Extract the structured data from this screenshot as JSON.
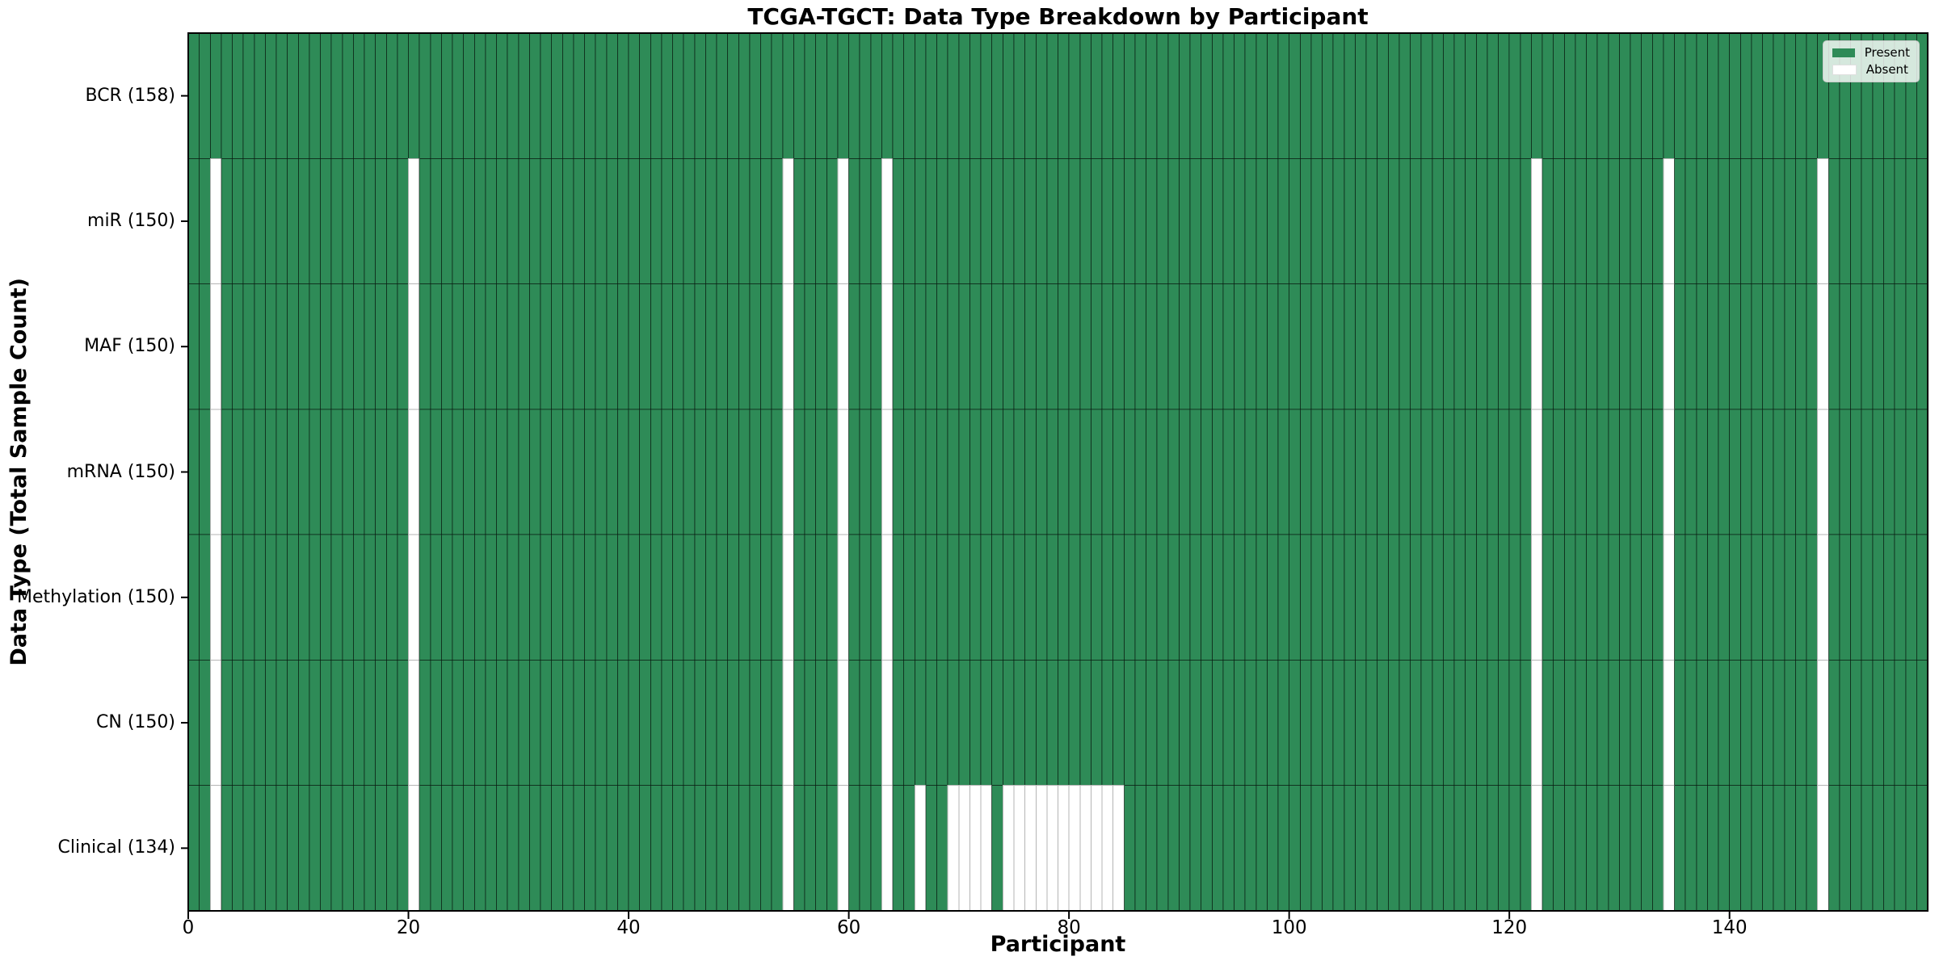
{
  "figure": {
    "title": "TCGA-TGCT: Data Type Breakdown by Participant",
    "xlabel": "Participant",
    "ylabel": "Data Type (Total Sample Count)"
  },
  "chart_data": {
    "type": "heatmap",
    "title": "TCGA-TGCT: Data Type Breakdown by Participant",
    "xlabel": "Participant",
    "ylabel": "Data Type (Total Sample Count)",
    "n_participants": 158,
    "x_range": [
      0,
      158
    ],
    "x_ticks": [
      0,
      20,
      40,
      60,
      80,
      100,
      120,
      140
    ],
    "grid": false,
    "legend_position": "upper right",
    "legend": [
      {
        "label": "Present",
        "color": "#2e8b57"
      },
      {
        "label": "Absent",
        "color": "#ffffff"
      }
    ],
    "colors": {
      "present": "#2e8b57",
      "absent": "#ffffff",
      "present_edge": "rgba(0,0,0,0.5)",
      "absent_edge": "#b5b5b5",
      "frame": "#000000"
    },
    "rows": [
      {
        "label": "BCR (158)",
        "data_type": "BCR",
        "total": 158,
        "missing_participants": []
      },
      {
        "label": "miR (150)",
        "data_type": "miR",
        "total": 150,
        "missing_participants": [
          2,
          20,
          54,
          59,
          63,
          122,
          134,
          148
        ]
      },
      {
        "label": "MAF (150)",
        "data_type": "MAF",
        "total": 150,
        "missing_participants": [
          2,
          20,
          54,
          59,
          63,
          122,
          134,
          148
        ]
      },
      {
        "label": "mRNA (150)",
        "data_type": "mRNA",
        "total": 150,
        "missing_participants": [
          2,
          20,
          54,
          59,
          63,
          122,
          134,
          148
        ]
      },
      {
        "label": "Methylation (150)",
        "data_type": "Methylation",
        "total": 150,
        "missing_participants": [
          2,
          20,
          54,
          59,
          63,
          122,
          134,
          148
        ]
      },
      {
        "label": "CN (150)",
        "data_type": "CN",
        "total": 150,
        "missing_participants": [
          2,
          20,
          54,
          59,
          63,
          122,
          134,
          148
        ]
      },
      {
        "label": "Clinical (134)",
        "data_type": "Clinical",
        "total": 134,
        "missing_participants": [
          2,
          20,
          54,
          59,
          63,
          66,
          69,
          70,
          71,
          72,
          74,
          75,
          76,
          77,
          78,
          79,
          80,
          81,
          82,
          83,
          84,
          122,
          134,
          148
        ]
      }
    ]
  }
}
